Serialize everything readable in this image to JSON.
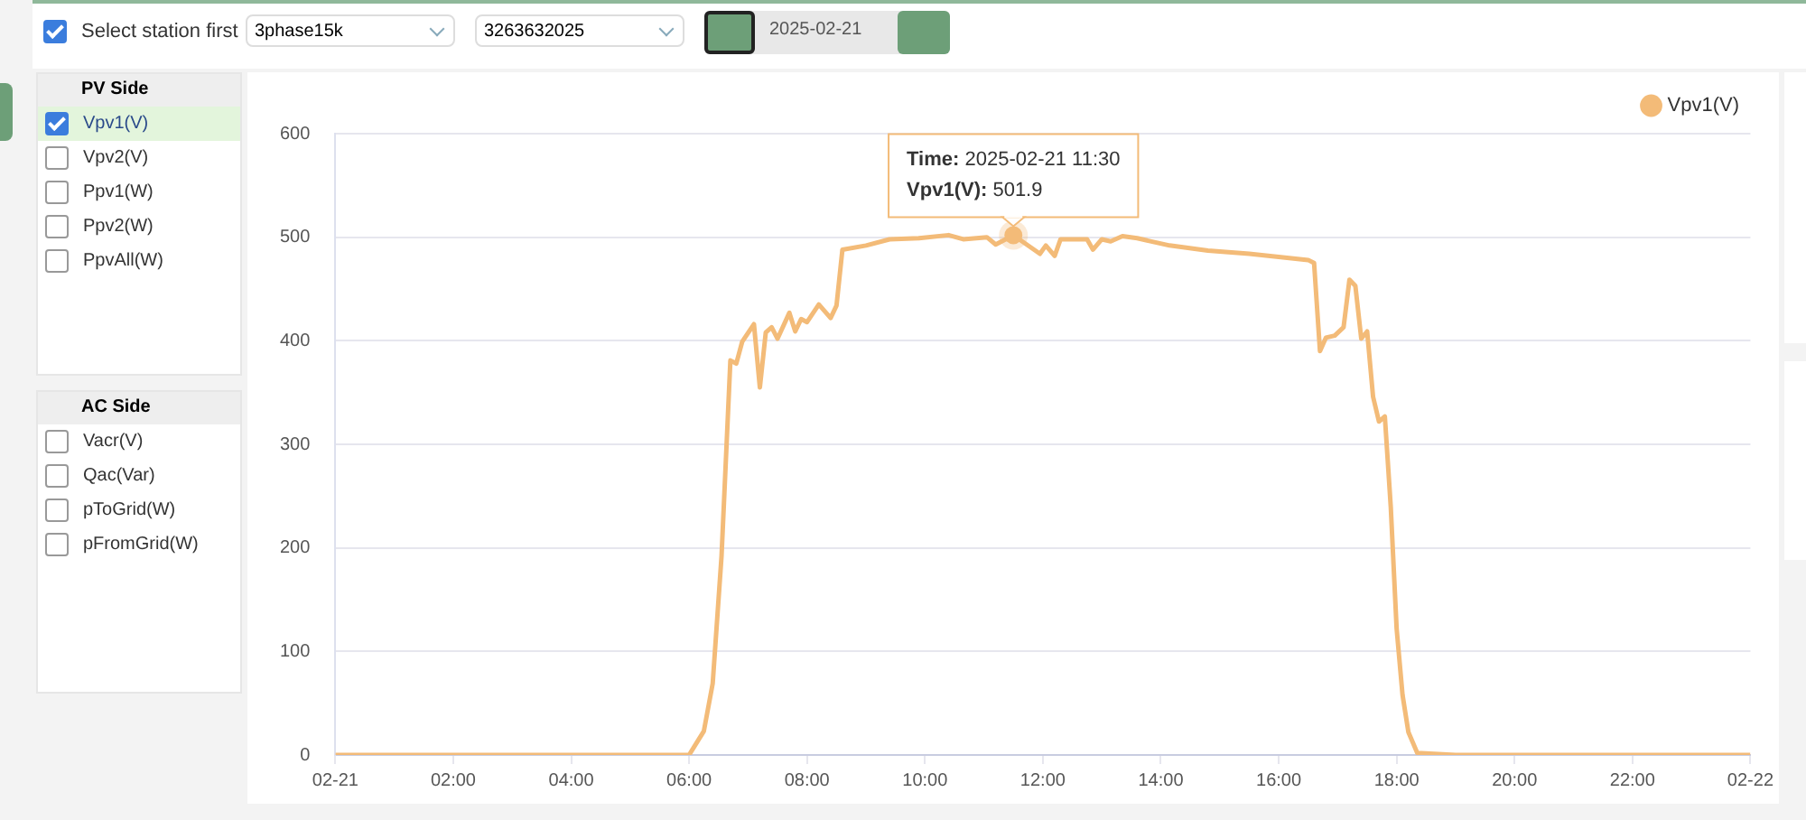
{
  "chart_data": {
    "type": "line",
    "x": [
      0,
      1,
      2,
      3,
      4,
      5,
      6,
      6.25,
      6.4,
      6.55,
      6.7,
      6.8,
      6.9,
      7.1,
      7.2,
      7.3,
      7.4,
      7.5,
      7.7,
      7.8,
      7.9,
      8,
      8.2,
      8.4,
      8.5,
      8.6,
      9,
      9.4,
      9.9,
      10.4,
      10.65,
      11.05,
      11.2,
      11.5,
      11.95,
      12.05,
      12.2,
      12.3,
      12.75,
      12.85,
      13,
      13.15,
      13.35,
      13.6,
      14.15,
      14.8,
      15.5,
      16.5,
      16.6,
      16.7,
      16.8,
      16.95,
      17.1,
      17.2,
      17.3,
      17.4,
      17.5,
      17.6,
      17.7,
      17.8,
      17.9,
      18,
      18.1,
      18.2,
      18.35,
      19,
      20,
      21,
      22,
      23,
      24
    ],
    "series": [
      {
        "name": "Vpv1(V)",
        "color": "#f3bb78",
        "values": [
          0,
          0,
          0,
          0,
          0,
          0,
          0,
          23,
          69,
          192,
          381,
          378,
          399,
          416,
          355,
          408,
          413,
          402,
          427,
          409,
          421,
          418,
          435,
          422,
          434,
          488,
          492,
          498,
          499,
          502,
          498,
          500,
          493,
          501.9,
          484,
          492,
          482,
          498,
          498,
          488,
          498,
          496,
          501,
          499,
          492,
          487,
          484,
          478,
          475,
          390,
          403,
          405,
          413,
          459,
          453,
          402,
          409,
          346,
          322,
          327,
          240,
          122,
          58,
          22,
          2,
          0,
          0,
          0,
          0,
          0,
          0
        ]
      }
    ],
    "xlim": [
      0,
      24
    ],
    "xticks": [
      {
        "value": 0,
        "label": "02-21"
      },
      {
        "value": 2,
        "label": "02:00"
      },
      {
        "value": 4,
        "label": "04:00"
      },
      {
        "value": 6,
        "label": "06:00"
      },
      {
        "value": 8,
        "label": "08:00"
      },
      {
        "value": 10,
        "label": "10:00"
      },
      {
        "value": 12,
        "label": "12:00"
      },
      {
        "value": 14,
        "label": "14:00"
      },
      {
        "value": 16,
        "label": "16:00"
      },
      {
        "value": 18,
        "label": "18:00"
      },
      {
        "value": 20,
        "label": "20:00"
      },
      {
        "value": 22,
        "label": "22:00"
      },
      {
        "value": 24,
        "label": "02-22"
      }
    ],
    "ylim": [
      0,
      600
    ],
    "yticks": [
      0,
      100,
      200,
      300,
      400,
      500,
      600
    ],
    "grid": "y",
    "legend": "top right",
    "annotations": [
      "Time: 2025-02-21 11:30",
      {
        "text": "Vpv1(V): 501.9",
        "x": 11.5,
        "y": 501.9
      },
      "Select station first",
      "3phase15k",
      "3263632025",
      "2025-02-21",
      "PV Side",
      "Vpv1(V)",
      "Vpv2(V)",
      "Ppv1(W)",
      "Ppv2(W)",
      "PpvAll(W)",
      "AC Side",
      "Vacr(V)",
      "Qac(Var)",
      "pToGrid(W)",
      "pFromGrid(W)"
    ]
  }
}
